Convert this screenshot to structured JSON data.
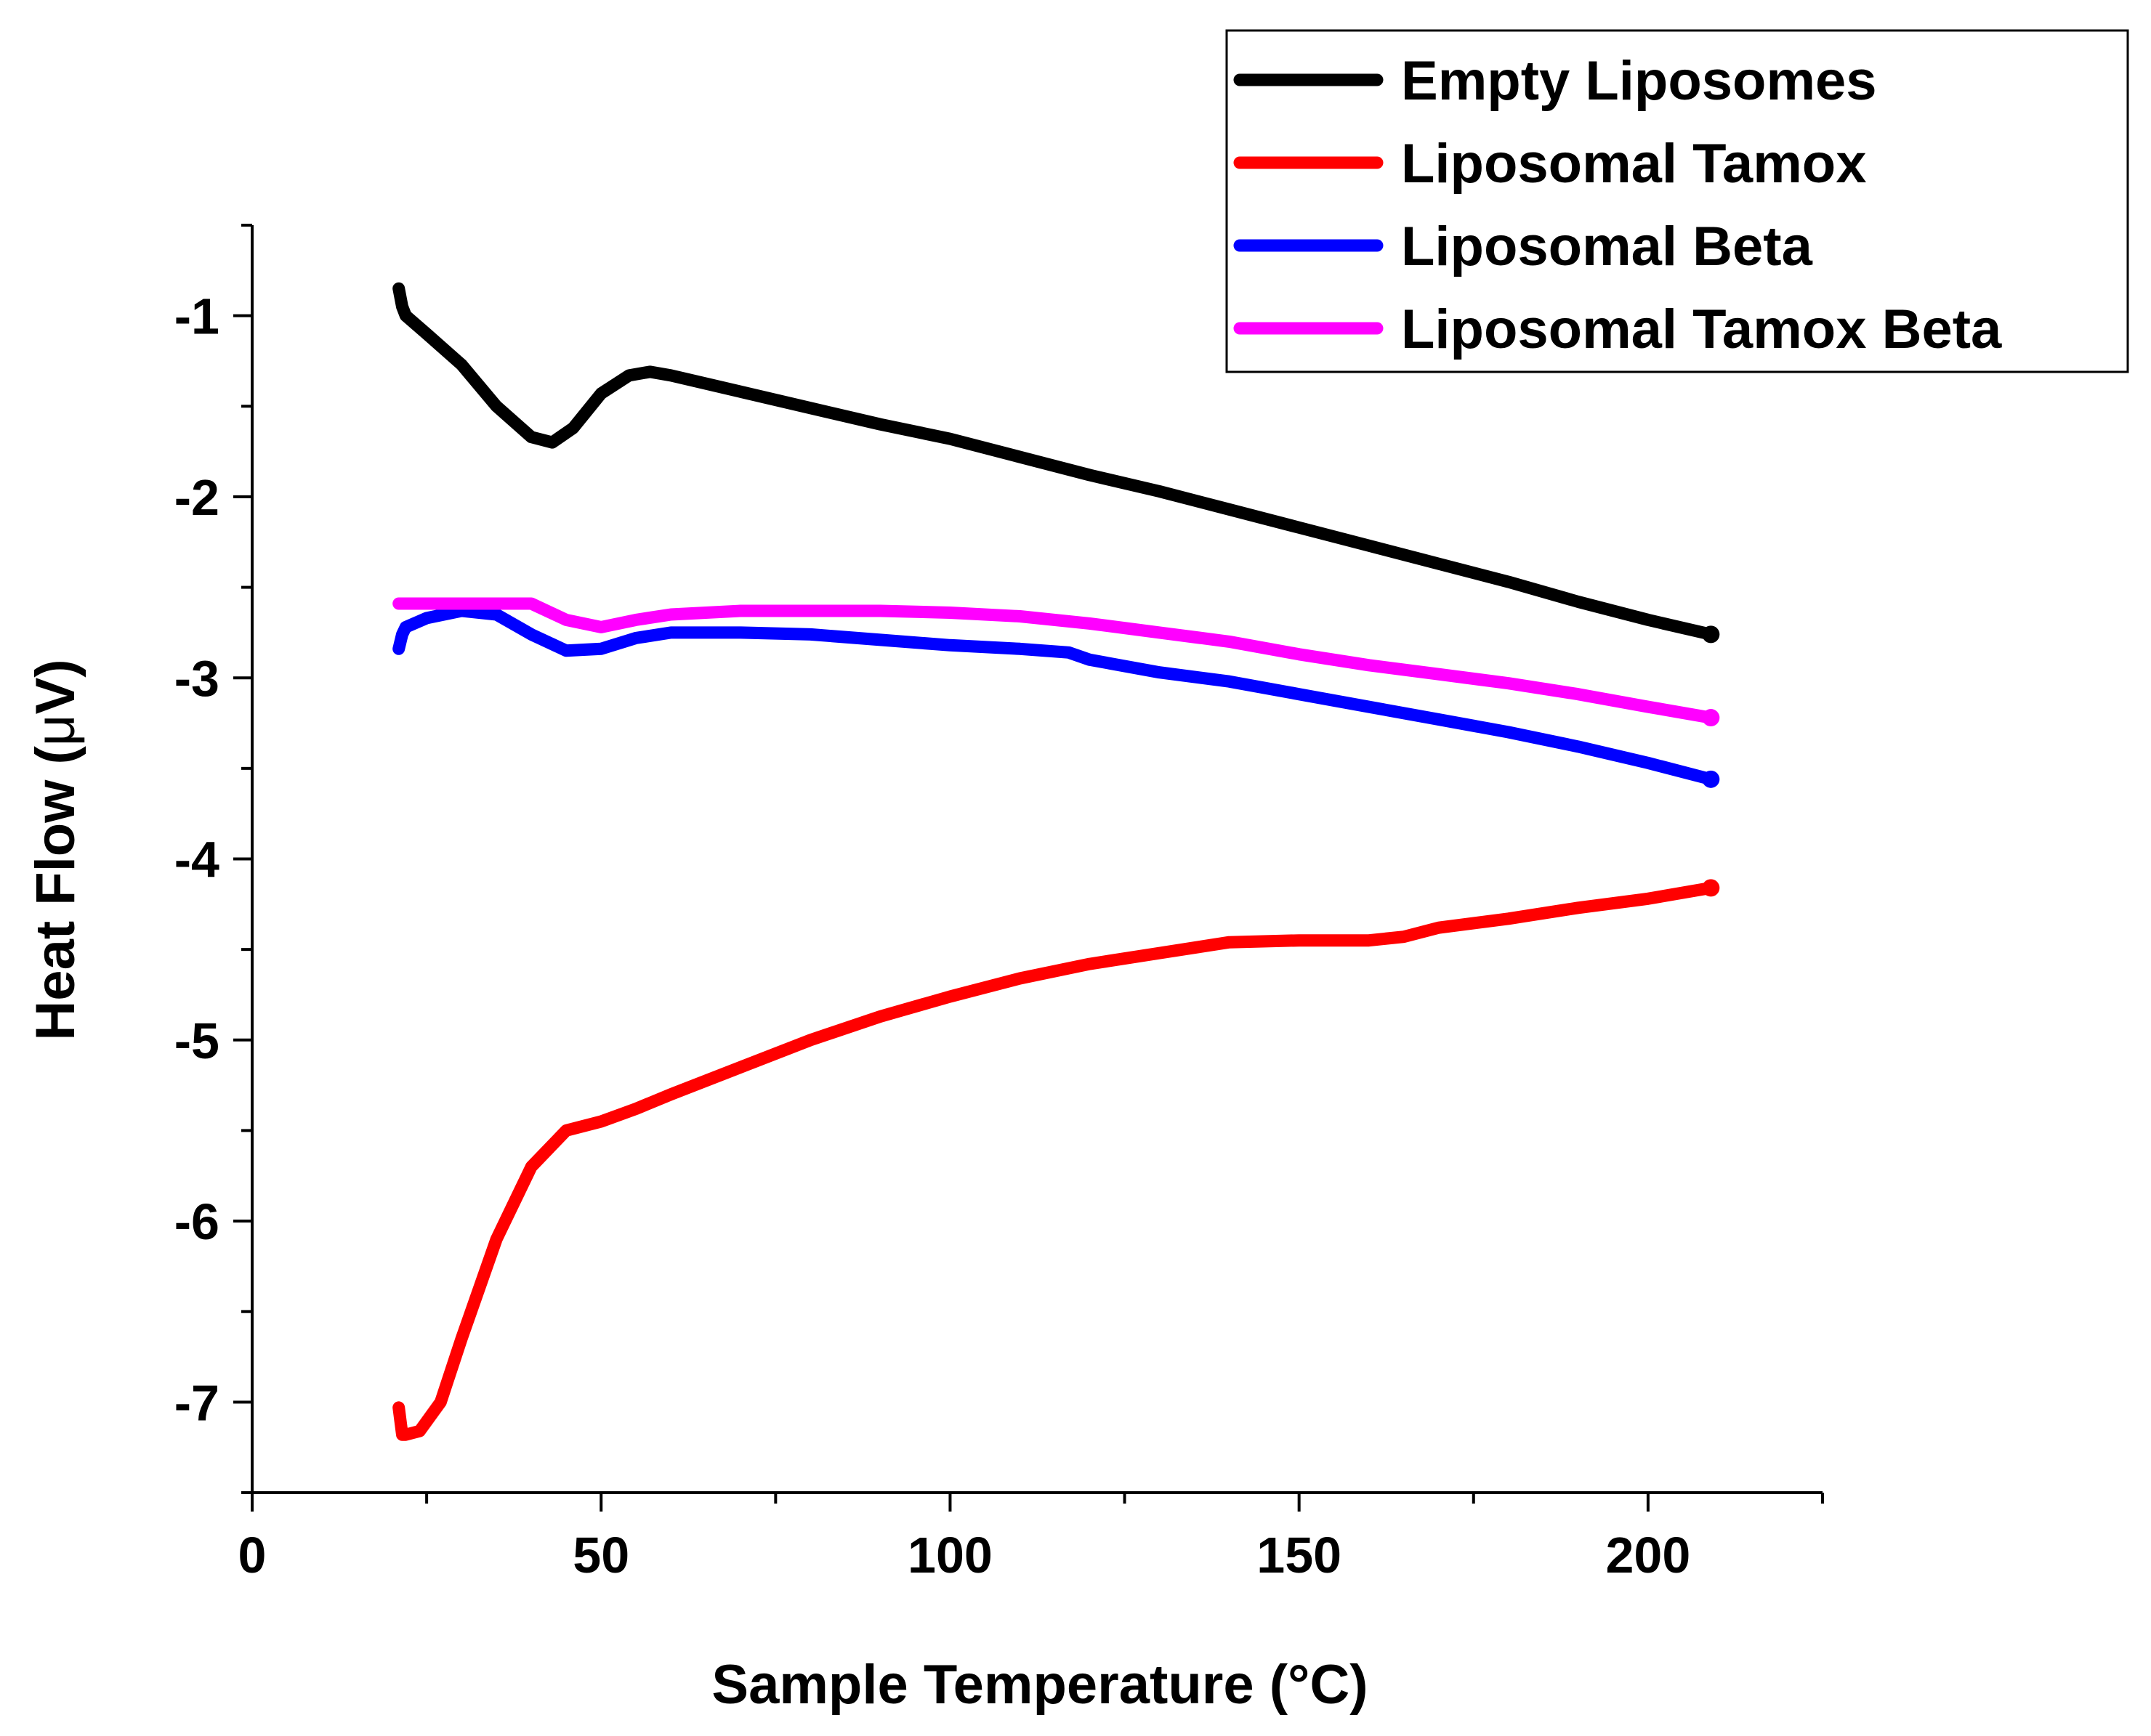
{
  "chart_data": {
    "type": "line",
    "title": "",
    "xlabel": "Sample Temperature (°C)",
    "ylabel_prefix": "Heat Flow (",
    "ylabel_symbol": "μ",
    "ylabel_suffix": "V)",
    "xlim": [
      0,
      225
    ],
    "ylim": [
      -7.5,
      -0.5
    ],
    "xticks": [
      0,
      50,
      100,
      150,
      200
    ],
    "xtick_labels": [
      "0",
      "50",
      "100",
      "150",
      "200"
    ],
    "yticks": [
      -1,
      -2,
      -3,
      -4,
      -5,
      -6,
      -7
    ],
    "ytick_labels": [
      "-1",
      "-2",
      "-3",
      "-4",
      "-5",
      "-6",
      "-7"
    ],
    "legend_position": "top-right",
    "series": [
      {
        "name": "Empty Liposomes",
        "color": "#000000",
        "x": [
          21,
          21.5,
          22,
          25,
          30,
          35,
          40,
          43,
          46,
          50,
          54,
          57,
          60,
          70,
          80,
          90,
          100,
          110,
          120,
          130,
          140,
          150,
          160,
          170,
          180,
          190,
          200,
          209
        ],
        "y": [
          -0.85,
          -0.95,
          -1.0,
          -1.1,
          -1.27,
          -1.5,
          -1.67,
          -1.7,
          -1.62,
          -1.43,
          -1.33,
          -1.31,
          -1.33,
          -1.42,
          -1.51,
          -1.6,
          -1.68,
          -1.78,
          -1.88,
          -1.97,
          -2.07,
          -2.17,
          -2.27,
          -2.37,
          -2.47,
          -2.58,
          -2.68,
          -2.76
        ]
      },
      {
        "name": "Liposomal Tamox",
        "color": "#ff0000",
        "x": [
          21,
          21.5,
          22,
          24,
          27,
          30,
          35,
          40,
          45,
          50,
          55,
          60,
          70,
          80,
          90,
          100,
          110,
          120,
          130,
          140,
          150,
          160,
          165,
          170,
          180,
          190,
          200,
          209
        ],
        "y": [
          -7.03,
          -7.18,
          -7.18,
          -7.16,
          -7.0,
          -6.65,
          -6.1,
          -5.7,
          -5.5,
          -5.45,
          -5.38,
          -5.3,
          -5.15,
          -5.0,
          -4.87,
          -4.76,
          -4.66,
          -4.58,
          -4.52,
          -4.46,
          -4.45,
          -4.45,
          -4.43,
          -4.38,
          -4.33,
          -4.27,
          -4.22,
          -4.16
        ]
      },
      {
        "name": "Liposomal Beta",
        "color": "#0000ff",
        "x": [
          21,
          21.5,
          22,
          25,
          30,
          35,
          40,
          45,
          50,
          55,
          60,
          70,
          80,
          90,
          100,
          110,
          117,
          120,
          130,
          140,
          150,
          160,
          170,
          180,
          190,
          200,
          209
        ],
        "y": [
          -2.84,
          -2.76,
          -2.72,
          -2.67,
          -2.63,
          -2.65,
          -2.76,
          -2.85,
          -2.84,
          -2.78,
          -2.75,
          -2.75,
          -2.76,
          -2.79,
          -2.82,
          -2.84,
          -2.86,
          -2.9,
          -2.97,
          -3.02,
          -3.09,
          -3.16,
          -3.23,
          -3.3,
          -3.38,
          -3.47,
          -3.56
        ]
      },
      {
        "name": "Liposomal Tamox Beta",
        "color": "#ff00ff",
        "x": [
          21,
          25,
          30,
          35,
          40,
          45,
          50,
          55,
          60,
          70,
          80,
          90,
          100,
          110,
          120,
          130,
          140,
          150,
          160,
          170,
          180,
          190,
          200,
          209
        ],
        "y": [
          -2.59,
          -2.59,
          -2.59,
          -2.59,
          -2.59,
          -2.68,
          -2.72,
          -2.68,
          -2.65,
          -2.63,
          -2.63,
          -2.63,
          -2.64,
          -2.66,
          -2.7,
          -2.75,
          -2.8,
          -2.87,
          -2.93,
          -2.98,
          -3.03,
          -3.09,
          -3.16,
          -3.22
        ]
      }
    ]
  }
}
